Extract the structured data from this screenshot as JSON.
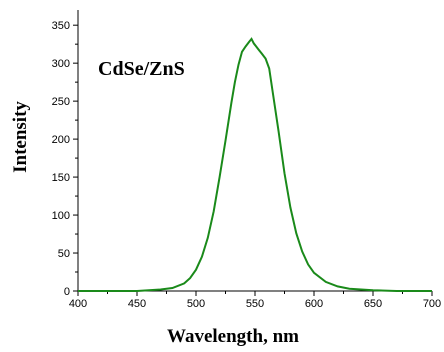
{
  "chart_data": {
    "type": "line",
    "title": "",
    "annotation": "CdSe/ZnS",
    "xlabel": "Wavelength, nm",
    "ylabel": "Intensity",
    "xlim": [
      400,
      700
    ],
    "ylim": [
      0,
      370
    ],
    "xticks": [
      400,
      450,
      500,
      550,
      600,
      650,
      700
    ],
    "yticks": [
      0,
      50,
      100,
      150,
      200,
      250,
      300,
      350
    ],
    "grid": false,
    "legend": "none",
    "series": [
      {
        "color": "#1a8a1a",
        "x": [
          400,
          450,
          470,
          480,
          490,
          495,
          500,
          505,
          510,
          515,
          520,
          525,
          530,
          533,
          536,
          539,
          542,
          545,
          547,
          549,
          551,
          553,
          556,
          559,
          562,
          565,
          570,
          575,
          580,
          585,
          590,
          595,
          600,
          610,
          620,
          630,
          640,
          650,
          670,
          700
        ],
        "y": [
          0,
          0,
          2,
          4,
          10,
          17,
          28,
          45,
          70,
          105,
          150,
          198,
          248,
          275,
          298,
          315,
          322,
          328,
          332,
          326,
          322,
          318,
          312,
          306,
          293,
          262,
          210,
          155,
          110,
          76,
          52,
          35,
          24,
          12,
          6,
          3,
          2,
          1,
          0,
          0
        ]
      }
    ]
  }
}
